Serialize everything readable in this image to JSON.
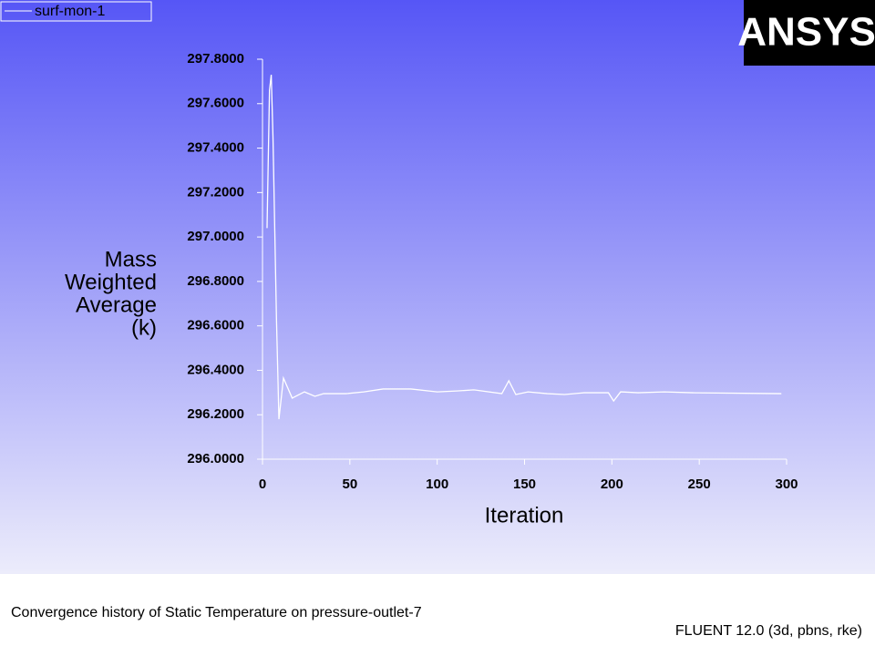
{
  "chart_data": {
    "type": "line",
    "title": "Convergence history of Static Temperature on pressure-outlet-7",
    "footer": "FLUENT 12.0 (3d, pbns, rke)",
    "logo": "ANSYS",
    "xlabel": "Iteration",
    "ylabel": [
      "Mass",
      "Weighted",
      "Average",
      "(k)"
    ],
    "x": [
      2.6,
      4,
      5,
      6,
      8,
      9.4,
      12,
      17,
      24,
      30,
      35,
      48,
      58,
      69,
      85,
      100,
      111,
      121,
      137,
      141,
      145,
      152,
      163,
      173,
      184,
      198,
      201,
      205,
      215,
      230,
      246,
      297
    ],
    "series": [
      {
        "name": "surf-mon-1",
        "color": "#ffffff",
        "values": [
          297.04,
          297.66,
          297.73,
          297.45,
          296.63,
          296.18,
          296.365,
          296.275,
          296.303,
          296.283,
          296.295,
          296.295,
          296.303,
          296.316,
          296.316,
          296.303,
          296.307,
          296.312,
          296.295,
          296.353,
          296.291,
          296.303,
          296.295,
          296.291,
          296.299,
          296.299,
          296.262,
          296.303,
          296.299,
          296.303,
          296.299,
          296.295
        ]
      }
    ],
    "xlim": [
      0,
      300
    ],
    "xticks": [
      0,
      50,
      100,
      150,
      200,
      250,
      300
    ],
    "ylim": [
      296,
      297.8
    ],
    "yticks": [
      {
        "value": 296,
        "label": "296.0000"
      },
      {
        "value": 296.2,
        "label": "296.2000"
      },
      {
        "value": 296.4,
        "label": "296.4000"
      },
      {
        "value": 296.6,
        "label": "296.6000"
      },
      {
        "value": 296.8,
        "label": "296.8000"
      },
      {
        "value": 297,
        "label": "297.0000"
      },
      {
        "value": 297.2,
        "label": "297.2000"
      },
      {
        "value": 297.4,
        "label": "297.4000"
      },
      {
        "value": 297.6,
        "label": "297.6000"
      },
      {
        "value": 297.8,
        "label": "297.8000"
      }
    ]
  }
}
